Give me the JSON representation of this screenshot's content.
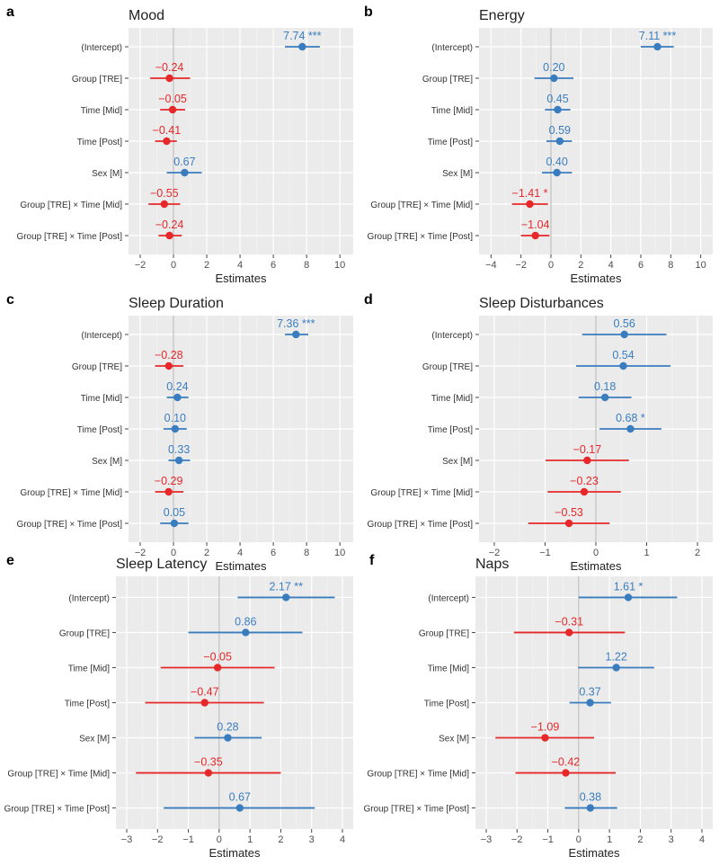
{
  "figure": {
    "background": "#ffffff",
    "panel_bg": "#ebebeb",
    "positive_color": "#3a7dbf",
    "negative_color": "#e6282a"
  },
  "chart_data": [
    {
      "type": "forest",
      "letter": "a",
      "title": "Mood",
      "xlabel": "Estimates",
      "xlim": [
        -2.7,
        10.8
      ],
      "xticks": [
        -2,
        0,
        2,
        4,
        6,
        8,
        10
      ],
      "xticklabels": [
        "−2",
        "0",
        "2",
        "4",
        "6",
        "8",
        "10"
      ],
      "terms": [
        {
          "term": "(Intercept)",
          "estimate": 7.74,
          "ci": [
            6.7,
            8.8
          ],
          "label": "7.74 ***"
        },
        {
          "term": "Group [TRE]",
          "estimate": -0.24,
          "ci": [
            -1.4,
            1.0
          ],
          "label": "−0.24"
        },
        {
          "term": "Time [Mid]",
          "estimate": -0.05,
          "ci": [
            -0.8,
            0.7
          ],
          "label": "−0.05"
        },
        {
          "term": "Time [Post]",
          "estimate": -0.41,
          "ci": [
            -1.1,
            0.2
          ],
          "label": "−0.41"
        },
        {
          "term": "Sex [M]",
          "estimate": 0.67,
          "ci": [
            -0.4,
            1.7
          ],
          "label": "0.67"
        },
        {
          "term": "Group [TRE] × Time [Mid]",
          "estimate": -0.55,
          "ci": [
            -1.5,
            0.4
          ],
          "label": "−0.55"
        },
        {
          "term": "Group [TRE] × Time [Post]",
          "estimate": -0.24,
          "ci": [
            -0.9,
            0.5
          ],
          "label": "−0.24"
        }
      ]
    },
    {
      "type": "forest",
      "letter": "b",
      "title": "Energy",
      "xlabel": "Estimates",
      "xlim": [
        -4.8,
        10.8
      ],
      "xticks": [
        -4,
        -2,
        0,
        2,
        4,
        6,
        8,
        10
      ],
      "xticklabels": [
        "−4",
        "−2",
        "0",
        "2",
        "4",
        "6",
        "8",
        "10"
      ],
      "terms": [
        {
          "term": "(Intercept)",
          "estimate": 7.11,
          "ci": [
            6.0,
            8.2
          ],
          "label": "7.11 ***"
        },
        {
          "term": "Group [TRE]",
          "estimate": 0.2,
          "ci": [
            -1.1,
            1.5
          ],
          "label": "0.20"
        },
        {
          "term": "Time [Mid]",
          "estimate": 0.45,
          "ci": [
            -0.4,
            1.3
          ],
          "label": "0.45"
        },
        {
          "term": "Time [Post]",
          "estimate": 0.59,
          "ci": [
            -0.3,
            1.4
          ],
          "label": "0.59"
        },
        {
          "term": "Sex [M]",
          "estimate": 0.4,
          "ci": [
            -0.6,
            1.4
          ],
          "label": "0.40"
        },
        {
          "term": "Group [TRE] × Time [Mid]",
          "estimate": -1.41,
          "ci": [
            -2.6,
            -0.2
          ],
          "label": "−1.41 *"
        },
        {
          "term": "Group [TRE] × Time [Post]",
          "estimate": -1.04,
          "ci": [
            -2.0,
            -0.1
          ],
          "label": "−1.04"
        }
      ]
    },
    {
      "type": "forest",
      "letter": "c",
      "title": "Sleep Duration",
      "xlabel": "Estimates",
      "xlim": [
        -2.7,
        10.8
      ],
      "xticks": [
        -2,
        0,
        2,
        4,
        6,
        8,
        10
      ],
      "xticklabels": [
        "−2",
        "0",
        "2",
        "4",
        "6",
        "8",
        "10"
      ],
      "terms": [
        {
          "term": "(Intercept)",
          "estimate": 7.36,
          "ci": [
            6.7,
            8.1
          ],
          "label": "7.36 ***"
        },
        {
          "term": "Group [TRE]",
          "estimate": -0.28,
          "ci": [
            -1.1,
            0.6
          ],
          "label": "−0.28"
        },
        {
          "term": "Time [Mid]",
          "estimate": 0.24,
          "ci": [
            -0.4,
            0.9
          ],
          "label": "0.24"
        },
        {
          "term": "Time [Post]",
          "estimate": 0.1,
          "ci": [
            -0.6,
            0.8
          ],
          "label": "0.10"
        },
        {
          "term": "Sex [M]",
          "estimate": 0.33,
          "ci": [
            -0.3,
            1.0
          ],
          "label": "0.33"
        },
        {
          "term": "Group [TRE] × Time [Mid]",
          "estimate": -0.29,
          "ci": [
            -1.1,
            0.6
          ],
          "label": "−0.29"
        },
        {
          "term": "Group [TRE] × Time [Post]",
          "estimate": 0.05,
          "ci": [
            -0.8,
            0.9
          ],
          "label": "0.05"
        }
      ]
    },
    {
      "type": "forest",
      "letter": "d",
      "title": "Sleep Disturbances",
      "xlabel": "Estimates",
      "xlim": [
        -2.3,
        2.3
      ],
      "xticks": [
        -2,
        -1,
        0,
        1,
        2
      ],
      "xticklabels": [
        "−2",
        "−1",
        "0",
        "1",
        "2"
      ],
      "terms": [
        {
          "term": "(Intercept)",
          "estimate": 0.56,
          "ci": [
            -0.27,
            1.39
          ],
          "label": "0.56"
        },
        {
          "term": "Group [TRE]",
          "estimate": 0.54,
          "ci": [
            -0.39,
            1.47
          ],
          "label": "0.54"
        },
        {
          "term": "Time [Mid]",
          "estimate": 0.18,
          "ci": [
            -0.34,
            0.7
          ],
          "label": "0.18"
        },
        {
          "term": "Time [Post]",
          "estimate": 0.68,
          "ci": [
            0.07,
            1.29
          ],
          "label": "0.68 *"
        },
        {
          "term": "Sex [M]",
          "estimate": -0.17,
          "ci": [
            -0.99,
            0.65
          ],
          "label": "−0.17"
        },
        {
          "term": "Group [TRE] × Time [Mid]",
          "estimate": -0.23,
          "ci": [
            -0.95,
            0.49
          ],
          "label": "−0.23"
        },
        {
          "term": "Group [TRE] × Time [Post]",
          "estimate": -0.53,
          "ci": [
            -1.33,
            0.27
          ],
          "label": "−0.53"
        }
      ]
    },
    {
      "type": "forest",
      "letter": "e",
      "title": "Sleep Latency",
      "xlabel": "Estimates",
      "xlim": [
        -3.35,
        4.35
      ],
      "xticks": [
        -3,
        -2,
        -1,
        0,
        1,
        2,
        3,
        4
      ],
      "xticklabels": [
        "−3",
        "−2",
        "−1",
        "0",
        "1",
        "2",
        "3",
        "4"
      ],
      "terms": [
        {
          "term": "(Intercept)",
          "estimate": 2.17,
          "ci": [
            0.6,
            3.75
          ],
          "label": "2.17 **"
        },
        {
          "term": "Group [TRE]",
          "estimate": 0.86,
          "ci": [
            -1.0,
            2.7
          ],
          "label": "0.86"
        },
        {
          "term": "Time [Mid]",
          "estimate": -0.05,
          "ci": [
            -1.9,
            1.8
          ],
          "label": "−0.05"
        },
        {
          "term": "Time [Post]",
          "estimate": -0.47,
          "ci": [
            -2.4,
            1.45
          ],
          "label": "−0.47"
        },
        {
          "term": "Sex [M]",
          "estimate": 0.28,
          "ci": [
            -0.8,
            1.38
          ],
          "label": "0.28"
        },
        {
          "term": "Group [TRE] × Time [Mid]",
          "estimate": -0.35,
          "ci": [
            -2.7,
            2.0
          ],
          "label": "−0.35"
        },
        {
          "term": "Group [TRE] × Time [Post]",
          "estimate": 0.67,
          "ci": [
            -1.8,
            3.1
          ],
          "label": "0.67"
        }
      ]
    },
    {
      "type": "forest",
      "letter": "f",
      "title": "Naps",
      "xlabel": "Estimates",
      "xlim": [
        -3.35,
        4.35
      ],
      "xticks": [
        -3,
        -2,
        -1,
        0,
        1,
        2,
        3,
        4
      ],
      "xticklabels": [
        "−3",
        "−2",
        "−1",
        "0",
        "1",
        "2",
        "3",
        "4"
      ],
      "terms": [
        {
          "term": "(Intercept)",
          "estimate": 1.61,
          "ci": [
            0.0,
            3.2
          ],
          "label": "1.61 *"
        },
        {
          "term": "Group [TRE]",
          "estimate": -0.31,
          "ci": [
            -2.1,
            1.5
          ],
          "label": "−0.31"
        },
        {
          "term": "Time [Mid]",
          "estimate": 1.22,
          "ci": [
            -0.02,
            2.45
          ],
          "label": "1.22"
        },
        {
          "term": "Time [Post]",
          "estimate": 0.37,
          "ci": [
            -0.3,
            1.05
          ],
          "label": "0.37"
        },
        {
          "term": "Sex [M]",
          "estimate": -1.09,
          "ci": [
            -2.7,
            0.5
          ],
          "label": "−1.09"
        },
        {
          "term": "Group [TRE] × Time [Mid]",
          "estimate": -0.42,
          "ci": [
            -2.05,
            1.2
          ],
          "label": "−0.42"
        },
        {
          "term": "Group [TRE] × Time [Post]",
          "estimate": 0.38,
          "ci": [
            -0.45,
            1.25
          ],
          "label": "0.38"
        }
      ]
    }
  ]
}
